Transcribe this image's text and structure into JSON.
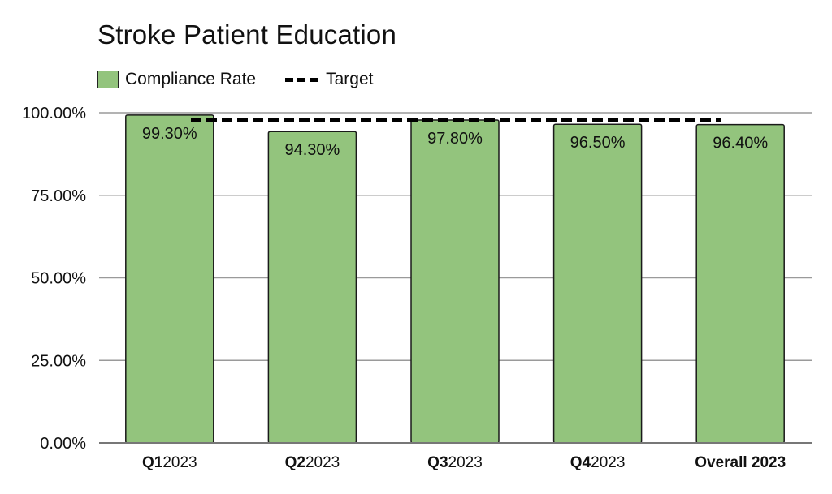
{
  "chart_data": {
    "type": "bar",
    "title": "Stroke Patient Education",
    "categories": [
      {
        "bold": "Q1",
        "rest": "2023"
      },
      {
        "bold": "Q2",
        "rest": "2023"
      },
      {
        "bold": "Q3",
        "rest": "2023"
      },
      {
        "bold": "Q4",
        "rest": "2023"
      },
      {
        "bold": "Overall 2023",
        "rest": ""
      }
    ],
    "series": [
      {
        "name": "Compliance Rate",
        "values": [
          99.3,
          94.3,
          97.8,
          96.5,
          96.4
        ],
        "color": "#93c47d"
      }
    ],
    "data_labels": [
      "99.30%",
      "94.30%",
      "97.80%",
      "96.50%",
      "96.40%"
    ],
    "target": {
      "name": "Target",
      "value": 97.5
    },
    "ylim": [
      0,
      100
    ],
    "yticks": [
      "0.00%",
      "25.00%",
      "50.00%",
      "75.00%",
      "100.00%"
    ],
    "ytick_values": [
      0,
      25,
      50,
      75,
      100
    ],
    "grid": true,
    "legend_position": "top-left"
  }
}
